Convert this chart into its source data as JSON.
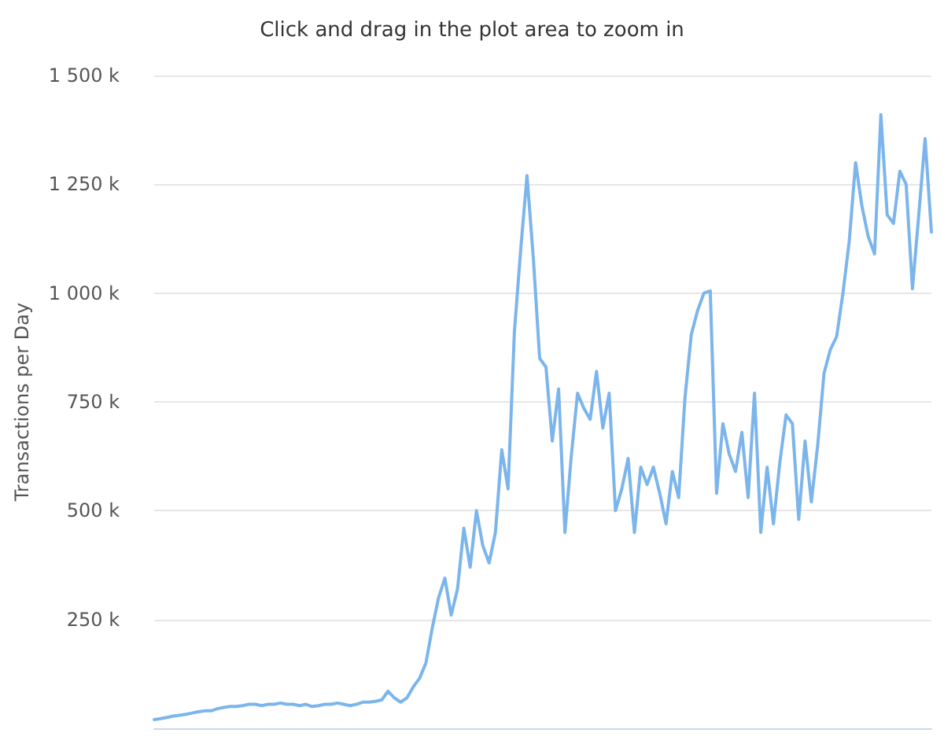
{
  "chart_data": {
    "type": "line",
    "subtitle": "Click and drag in the plot area to zoom in",
    "ylabel": "Transactions per Day",
    "categories": [
      null,
      null,
      null,
      null,
      null,
      null,
      null,
      null,
      null,
      null,
      null,
      null,
      null,
      null,
      null,
      null,
      null,
      null,
      null,
      null,
      null,
      null,
      null,
      null,
      null,
      null,
      null,
      null,
      null,
      null,
      null,
      null,
      null,
      null,
      null,
      null,
      null,
      null,
      null,
      null,
      null,
      null,
      null,
      null,
      null,
      null,
      null,
      null,
      null,
      null,
      null,
      null,
      null,
      null,
      null,
      null,
      null,
      null,
      null,
      null,
      null,
      null,
      null,
      null,
      null,
      null,
      null,
      null,
      null,
      null,
      null,
      null,
      null,
      null,
      null,
      null,
      null,
      null,
      null,
      null,
      null,
      null,
      null,
      null,
      null,
      null,
      null,
      null,
      null,
      null,
      null,
      null,
      null,
      null,
      null,
      null,
      null,
      null,
      null,
      null,
      null,
      null,
      null,
      null,
      null,
      null,
      null,
      null,
      null,
      null,
      null,
      null,
      null,
      null,
      null,
      null,
      null,
      null,
      null,
      null,
      null,
      null,
      null,
      null
    ],
    "series": [
      {
        "color": "#7cb5ec",
        "values": [
          20000,
          22000,
          25000,
          28000,
          30000,
          32000,
          35000,
          38000,
          40000,
          40000,
          45000,
          48000,
          50000,
          50000,
          52000,
          55000,
          55000,
          52000,
          55000,
          55000,
          58000,
          55000,
          55000,
          52000,
          55000,
          50000,
          52000,
          55000,
          55000,
          58000,
          55000,
          52000,
          55000,
          60000,
          60000,
          62000,
          65000,
          85000,
          70000,
          60000,
          70000,
          95000,
          115000,
          150000,
          230000,
          300000,
          345000,
          260000,
          320000,
          460000,
          370000,
          500000,
          420000,
          380000,
          450000,
          640000,
          550000,
          910000,
          1100000,
          1270000,
          1080000,
          850000,
          830000,
          660000,
          780000,
          450000,
          625000,
          770000,
          735000,
          710000,
          820000,
          690000,
          770000,
          500000,
          550000,
          620000,
          450000,
          600000,
          560000,
          600000,
          540000,
          470000,
          590000,
          530000,
          760000,
          905000,
          960000,
          1000000,
          1005000,
          540000,
          700000,
          630000,
          590000,
          680000,
          530000,
          770000,
          450000,
          600000,
          470000,
          610000,
          720000,
          700000,
          480000,
          660000,
          520000,
          650000,
          815000,
          870000,
          900000,
          1000000,
          1120000,
          1300000,
          1200000,
          1130000,
          1090000,
          1410000,
          1180000,
          1160000,
          1280000,
          1250000,
          1010000,
          1180000,
          1355000,
          1140000
        ]
      }
    ],
    "ylim": [
      0,
      1500000
    ],
    "yticks": [
      {
        "value": 250000,
        "label": "250 k"
      },
      {
        "value": 500000,
        "label": "500 k"
      },
      {
        "value": 750000,
        "label": "750 k"
      },
      {
        "value": 1000000,
        "label": "1 000 k"
      },
      {
        "value": 1250000,
        "label": "1 250 k"
      },
      {
        "value": 1500000,
        "label": "1 500 k"
      }
    ],
    "grid": "y",
    "tick_labels": "y",
    "line_style": "solid"
  }
}
